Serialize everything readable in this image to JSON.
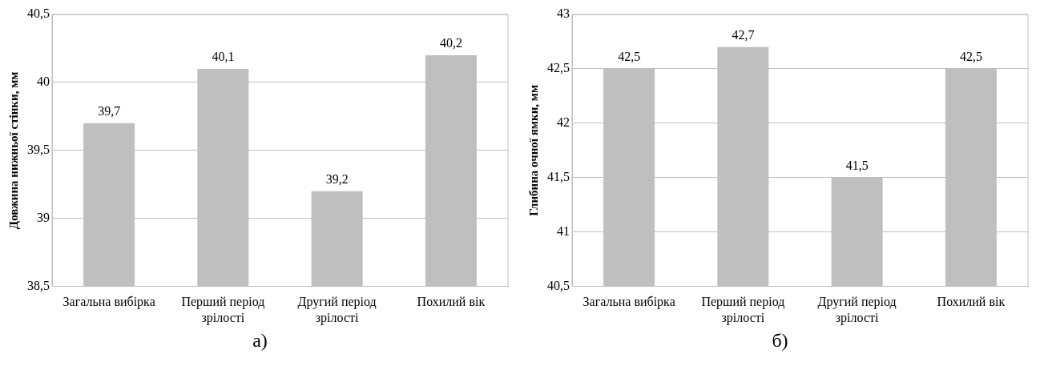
{
  "chart_data": [
    {
      "type": "bar",
      "ylabel": "Довжина нижньої стінки, мм",
      "categories": [
        "Загальна вибірка",
        "Перший період зрілості",
        "Другий період зрілості",
        "Похилий вік"
      ],
      "values": [
        39.7,
        40.1,
        39.2,
        40.2
      ],
      "color": "#bfbfbf",
      "ylim": [
        38.5,
        40.5
      ],
      "yticks": [
        {
          "value": 38.5,
          "label": "38,5"
        },
        {
          "value": 39,
          "label": "39"
        },
        {
          "value": 39.5,
          "label": "39,5"
        },
        {
          "value": 40,
          "label": "40"
        },
        {
          "value": 40.5,
          "label": "40,5"
        }
      ],
      "grid": "y",
      "data_labels": true,
      "value_labels": [
        "39,7",
        "40,1",
        "39,2",
        "40,2"
      ],
      "annotations": [
        "а)"
      ]
    },
    {
      "type": "bar",
      "ylabel": "Глибина очної ямки, мм",
      "categories": [
        "Загальна вибірка",
        "Перший період зрілості",
        "Другий період зрілості",
        "Похилий вік"
      ],
      "values": [
        42.5,
        42.7,
        41.5,
        42.5
      ],
      "color": "#bfbfbf",
      "ylim": [
        40.5,
        43
      ],
      "yticks": [
        {
          "value": 40.5,
          "label": "40,5"
        },
        {
          "value": 41,
          "label": "41"
        },
        {
          "value": 41.5,
          "label": "41,5"
        },
        {
          "value": 42,
          "label": "42"
        },
        {
          "value": 42.5,
          "label": "42,5"
        },
        {
          "value": 43,
          "label": "43"
        }
      ],
      "grid": "y",
      "data_labels": true,
      "value_labels": [
        "42,5",
        "42,7",
        "41,5",
        "42,5"
      ],
      "annotations": [
        "б)"
      ]
    }
  ]
}
